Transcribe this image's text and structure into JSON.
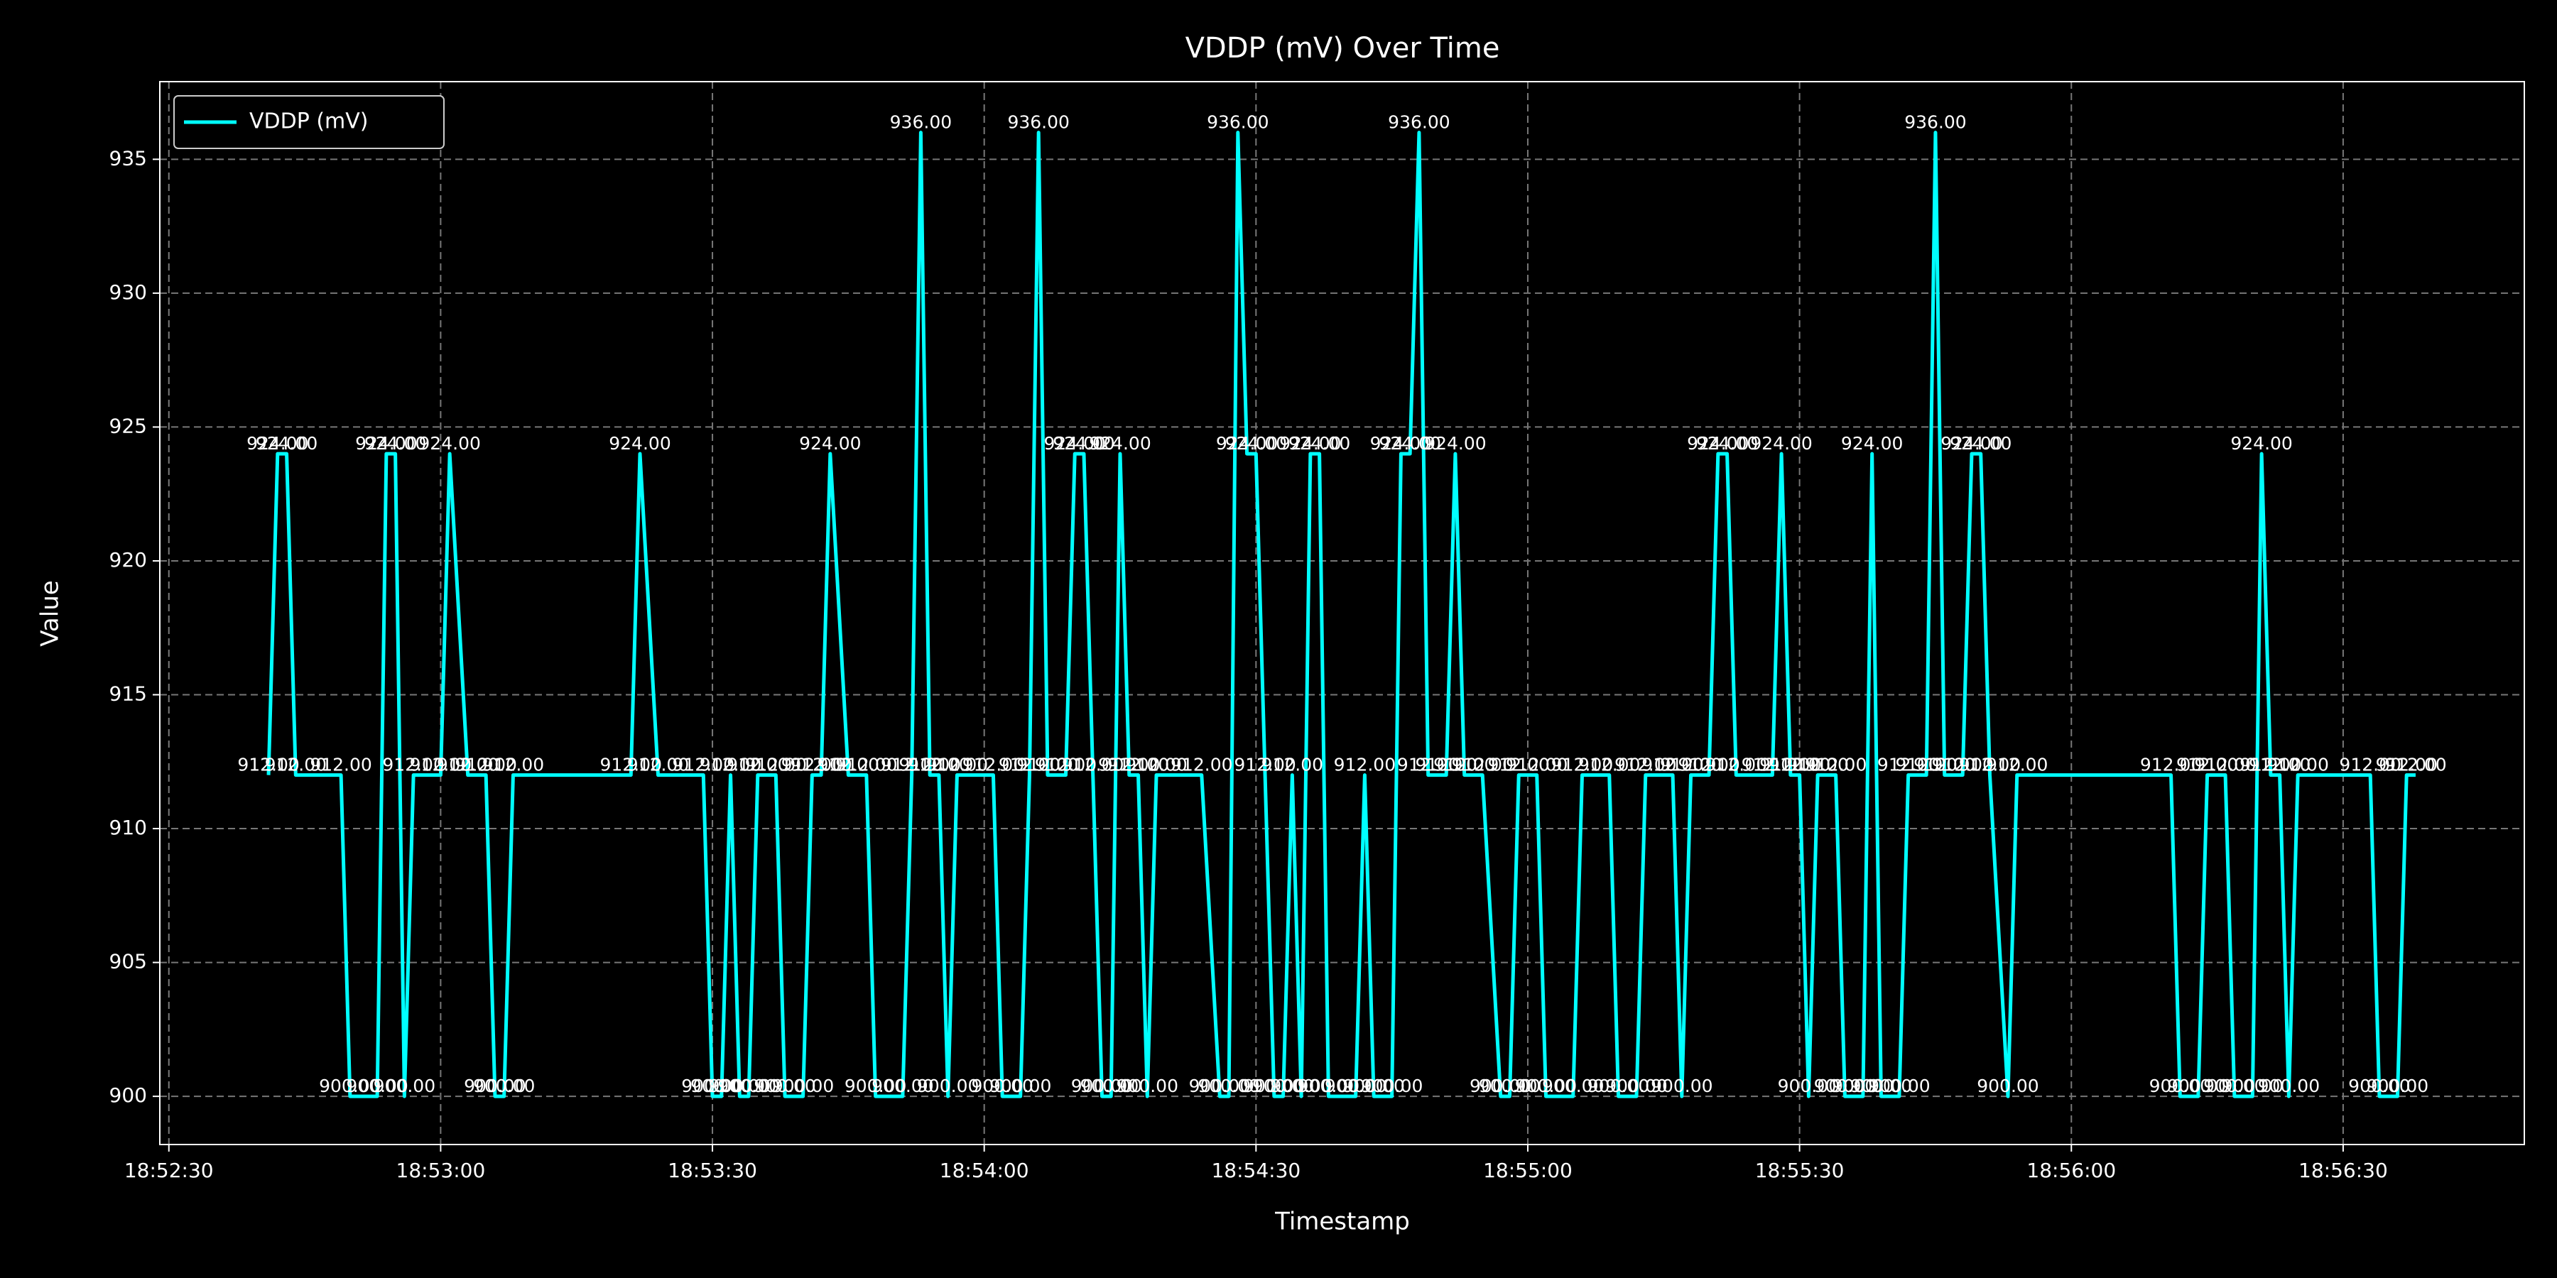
{
  "chart_data": {
    "type": "line",
    "title": "VDDP (mV) Over Time",
    "xlabel": "Timestamp",
    "ylabel": "Value",
    "x": [
      "18:52:41",
      "18:52:42",
      "18:52:43",
      "18:52:44",
      "18:52:49",
      "18:52:50",
      "18:52:53",
      "18:52:54",
      "18:52:55",
      "18:52:56",
      "18:52:57",
      "18:53:00",
      "18:53:01",
      "18:53:03",
      "18:53:05",
      "18:53:06",
      "18:53:07",
      "18:53:08",
      "18:53:21",
      "18:53:22",
      "18:53:24",
      "18:53:29",
      "18:53:30",
      "18:53:31",
      "18:53:32",
      "18:53:33",
      "18:53:34",
      "18:53:35",
      "18:53:37",
      "18:53:38",
      "18:53:40",
      "18:53:41",
      "18:53:42",
      "18:53:43",
      "18:53:45",
      "18:53:47",
      "18:53:48",
      "18:53:51",
      "18:53:52",
      "18:53:53",
      "18:53:54",
      "18:53:55",
      "18:53:56",
      "18:53:57",
      "18:54:01",
      "18:54:02",
      "18:54:04",
      "18:54:05",
      "18:54:06",
      "18:54:07",
      "18:54:09",
      "18:54:10",
      "18:54:11",
      "18:54:12",
      "18:54:13",
      "18:54:14",
      "18:54:15",
      "18:54:16",
      "18:54:17",
      "18:54:18",
      "18:54:19",
      "18:54:24",
      "18:54:26",
      "18:54:27",
      "18:54:28",
      "18:54:29",
      "18:54:30",
      "18:54:31",
      "18:54:32",
      "18:54:33",
      "18:54:34",
      "18:54:35",
      "18:54:36",
      "18:54:37",
      "18:54:38",
      "18:54:41",
      "18:54:42",
      "18:54:43",
      "18:54:45",
      "18:54:46",
      "18:54:47",
      "18:54:48",
      "18:54:49",
      "18:54:51",
      "18:54:52",
      "18:54:53",
      "18:54:55",
      "18:54:57",
      "18:54:58",
      "18:54:59",
      "18:55:01",
      "18:55:02",
      "18:55:05",
      "18:55:06",
      "18:55:09",
      "18:55:10",
      "18:55:12",
      "18:55:13",
      "18:55:16",
      "18:55:17",
      "18:55:18",
      "18:55:20",
      "18:55:21",
      "18:55:22",
      "18:55:23",
      "18:55:27",
      "18:55:28",
      "18:55:29",
      "18:55:30",
      "18:55:31",
      "18:55:32",
      "18:55:34",
      "18:55:35",
      "18:55:37",
      "18:55:38",
      "18:55:39",
      "18:55:41",
      "18:55:42",
      "18:55:44",
      "18:55:45",
      "18:55:46",
      "18:55:48",
      "18:55:49",
      "18:55:50",
      "18:55:51",
      "18:55:53",
      "18:55:54",
      "18:56:11",
      "18:56:12",
      "18:56:14",
      "18:56:15",
      "18:56:17",
      "18:56:18",
      "18:56:20",
      "18:56:21",
      "18:56:22",
      "18:56:23",
      "18:56:24",
      "18:56:25",
      "18:56:33",
      "18:56:34",
      "18:56:36",
      "18:56:37",
      "18:56:38"
    ],
    "series": [
      {
        "name": "VDDP (mV)",
        "color": "#00ffff",
        "values": [
          912,
          924,
          924,
          912,
          912,
          900,
          900,
          924,
          924,
          900,
          912,
          912,
          924,
          912,
          912,
          900,
          900,
          912,
          912,
          924,
          912,
          912,
          900,
          900,
          912,
          900,
          900,
          912,
          912,
          900,
          900,
          912,
          912,
          924,
          912,
          912,
          900,
          900,
          912,
          936,
          912,
          912,
          900,
          912,
          912,
          900,
          900,
          912,
          936,
          912,
          912,
          924,
          924,
          912,
          900,
          900,
          924,
          912,
          912,
          900,
          912,
          912,
          900,
          900,
          936,
          924,
          924,
          912,
          900,
          900,
          912,
          900,
          924,
          924,
          900,
          900,
          912,
          900,
          900,
          924,
          924,
          936,
          912,
          912,
          924,
          912,
          912,
          900,
          900,
          912,
          912,
          900,
          900,
          912,
          912,
          900,
          900,
          912,
          912,
          900,
          912,
          912,
          924,
          924,
          912,
          912,
          924,
          912,
          912,
          900,
          912,
          912,
          900,
          900,
          924,
          900,
          900,
          912,
          912,
          936,
          912,
          912,
          924,
          924,
          912,
          900,
          912,
          912,
          900,
          900,
          912,
          912,
          900,
          900,
          924,
          912,
          912,
          900,
          912,
          912,
          900,
          900,
          912,
          912
        ],
        "value_labels": [
          "912.00",
          "924.00",
          "924.00",
          "912.00",
          "912.00",
          "900.00",
          "900.00",
          "924.00",
          "924.00",
          "900.00",
          "912.00",
          "912.00",
          "924.00",
          "912.00",
          "912.00",
          "900.00",
          "900.00",
          "912.00",
          "912.00",
          "924.00",
          "912.00",
          "912.00",
          "900.00",
          "900.00",
          "912.00",
          "900.00",
          "900.00",
          "912.00",
          "912.00",
          "900.00",
          "900.00",
          "912.00",
          "912.00",
          "924.00",
          "912.00",
          "912.00",
          "900.00",
          "900.00",
          "912.00",
          "936.00",
          "912.00",
          "912.00",
          "900.00",
          "912.00",
          "912.00",
          "900.00",
          "900.00",
          "912.00",
          "936.00",
          "912.00",
          "912.00",
          "924.00",
          "924.00",
          "912.00",
          "900.00",
          "900.00",
          "924.00",
          "912.00",
          "912.00",
          "900.00",
          "912.00",
          "912.00",
          "900.00",
          "900.00",
          "936.00",
          "924.00",
          "924.00",
          "912.00",
          "900.00",
          "900.00",
          "912.00",
          "900.00",
          "924.00",
          "924.00",
          "900.00",
          "900.00",
          "912.00",
          "900.00",
          "900.00",
          "924.00",
          "924.00",
          "936.00",
          "912.00",
          "912.00",
          "924.00",
          "912.00",
          "912.00",
          "900.00",
          "900.00",
          "912.00",
          "912.00",
          "900.00",
          "900.00",
          "912.00",
          "912.00",
          "900.00",
          "900.00",
          "912.00",
          "912.00",
          "900.00",
          "912.00",
          "912.00",
          "924.00",
          "924.00",
          "912.00",
          "912.00",
          "924.00",
          "912.00",
          "912.00",
          "900.00",
          "912.00",
          "912.00",
          "900.00",
          "900.00",
          "924.00",
          "900.00",
          "900.00",
          "912.00",
          "912.00",
          "936.00",
          "912.00",
          "912.00",
          "924.00",
          "924.00",
          "912.00",
          "900.00",
          "912.00",
          "912.00",
          "900.00",
          "900.00",
          "912.00",
          "912.00",
          "900.00",
          "900.00",
          "924.00",
          "912.00",
          "912.00",
          "900.00",
          "912.00",
          "912.00",
          "900.00",
          "900.00",
          "912.00",
          "912.00"
        ]
      }
    ],
    "xlim": [
      "18:52:29",
      "18:56:50"
    ],
    "xticks": [
      "18:52:30",
      "18:53:00",
      "18:53:30",
      "18:54:00",
      "18:54:30",
      "18:55:00",
      "18:55:30",
      "18:56:00",
      "18:56:30"
    ],
    "ylim": [
      898.2,
      937.9
    ],
    "yticks": [
      900,
      905,
      910,
      915,
      920,
      925,
      930,
      935
    ],
    "grid": true,
    "legend": "upper left"
  }
}
